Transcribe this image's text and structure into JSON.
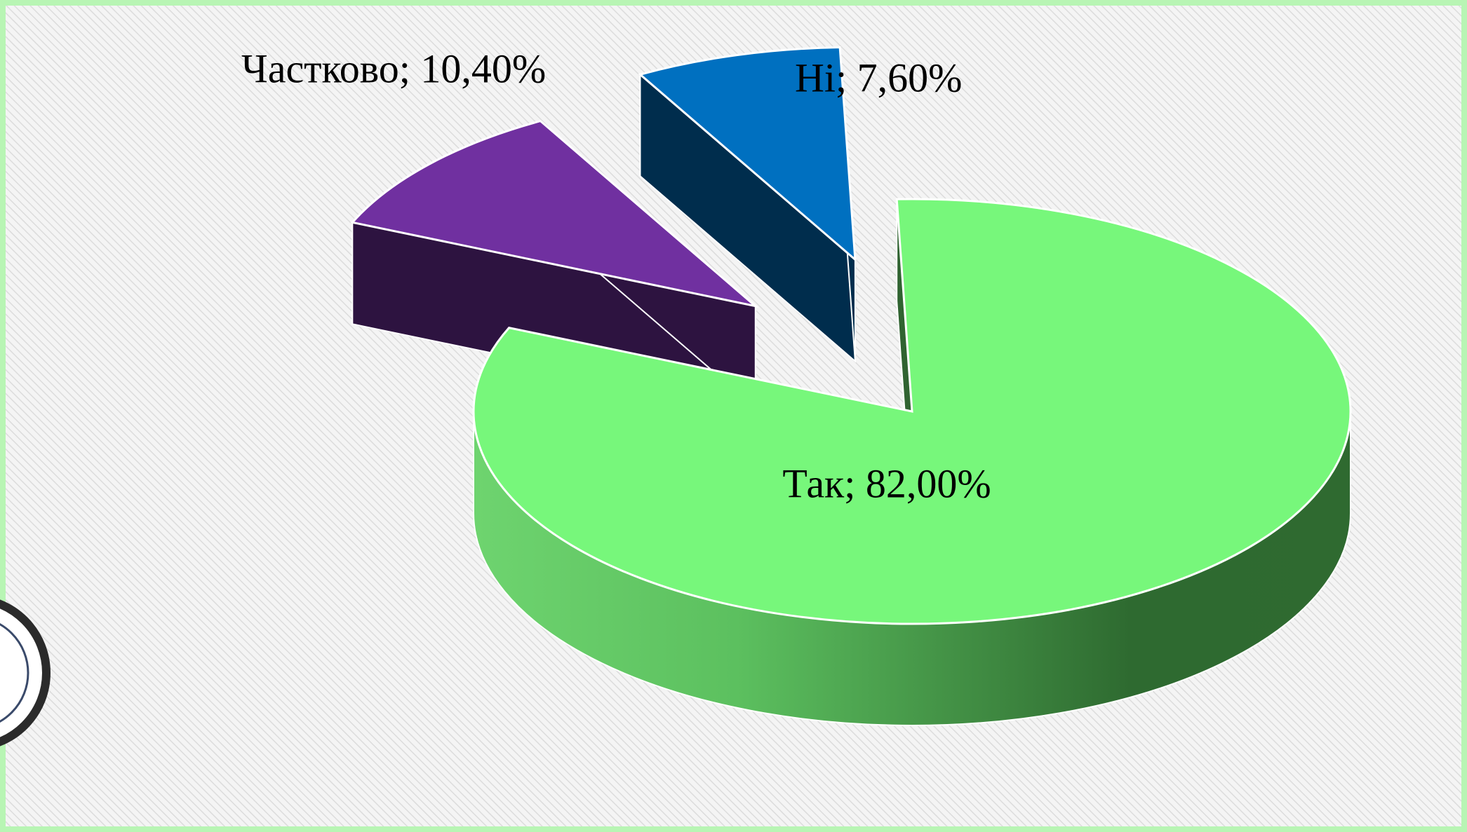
{
  "chart_data": {
    "type": "pie3d",
    "value_labels": [
      "Так; 82,00%",
      "Частково; 10,40%",
      "Ні; 7,60%"
    ],
    "values": [
      82,
      10.4,
      7.6
    ],
    "colors": [
      "#77f77b",
      "#7030a0",
      "#0070c0"
    ]
  }
}
